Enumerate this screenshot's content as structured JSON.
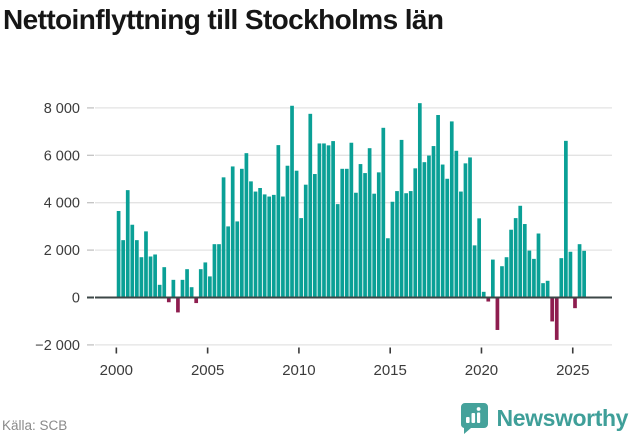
{
  "page": {
    "title": "Nettoinflyttning till Stockholms län"
  },
  "footer": {
    "source": "Källa: SCB",
    "logo_text": "Newsworthy"
  },
  "colors": {
    "bar_positive": "#0aa096",
    "bar_negative": "#8e1d4f",
    "grid_line": "#e3e3e3",
    "zero_line": "#3c4747",
    "axis_text": "#3b3b3b",
    "y_tick_dash": "#c2c2c2",
    "x_tick_dash": "#3b3b3b",
    "title_text": "#161616",
    "source_text": "#8a8a8a",
    "logo_teal": "#3f9f99"
  },
  "chart_data": {
    "type": "bar",
    "title": "Nettoinflyttning till Stockholms län",
    "frequency": "quarterly",
    "start_period": "2000Q1",
    "end_period": "2025Q3",
    "values": [
      3650,
      2420,
      4530,
      3070,
      2420,
      1700,
      2790,
      1730,
      1815,
      535,
      1280,
      -200,
      745,
      -630,
      745,
      1195,
      435,
      -235,
      1195,
      1480,
      890,
      2250,
      2250,
      5070,
      3000,
      5530,
      3210,
      5430,
      6090,
      4900,
      4470,
      4620,
      4350,
      4260,
      4330,
      6430,
      4260,
      5560,
      8090,
      5350,
      3350,
      4760,
      7750,
      5210,
      6500,
      6500,
      6420,
      6600,
      3940,
      5430,
      5430,
      6530,
      4420,
      5630,
      5250,
      6300,
      4380,
      5280,
      7160,
      2500,
      4040,
      4490,
      6650,
      4400,
      4490,
      5450,
      8200,
      5710,
      5990,
      6390,
      7700,
      5610,
      5010,
      7430,
      6190,
      4470,
      5660,
      5910,
      2200,
      3340,
      240,
      -170,
      1600,
      -1370,
      1320,
      1700,
      2860,
      3350,
      3870,
      3100,
      1980,
      1630,
      2700,
      605,
      705,
      -1010,
      -1790,
      1660,
      6610,
      1930,
      -450,
      2250,
      1970
    ],
    "y_ticks": [
      -2000,
      0,
      2000,
      4000,
      6000,
      8000
    ],
    "y_tick_labels": [
      "−2 000",
      "0",
      "2 000",
      "4 000",
      "6 000",
      "8 000"
    ],
    "x_tick_years": [
      2000,
      2005,
      2010,
      2015,
      2020,
      2025
    ],
    "x_tick_labels": [
      "2000",
      "2005",
      "2010",
      "2015",
      "2020",
      "2025"
    ],
    "ylim": [
      -2000,
      8500
    ],
    "grid": true,
    "legend": false,
    "xlabel": "",
    "ylabel": ""
  }
}
